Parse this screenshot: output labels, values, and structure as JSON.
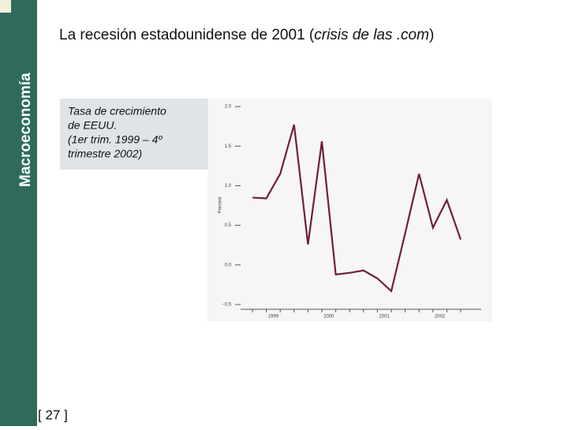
{
  "sidebar": "Macroeconomía",
  "title": {
    "start": "La recesión estadounidense de 2001 (",
    "italic": "crisis de las .com",
    "end": ")"
  },
  "caption": [
    "Tasa de crecimiento",
    "de EEUU.",
    "(1er trim. 1999 – 4º",
    "trimestre 2002)"
  ],
  "page_number": "[ 27 ]",
  "chart_data": {
    "type": "line",
    "y_label": "Percent",
    "categories": [
      "1999",
      null,
      null,
      null,
      "2000",
      null,
      null,
      null,
      "2001",
      null,
      null,
      null,
      "2002",
      null,
      null,
      null
    ],
    "series": [
      {
        "color": "#6e1f3c",
        "values": [
          0.85,
          0.84,
          1.15,
          1.77,
          0.26,
          1.56,
          -0.12,
          -0.1,
          -0.07,
          -0.17,
          -0.33,
          0.4,
          1.15,
          0.47,
          0.82,
          0.32
        ]
      }
    ],
    "ylim": [
      -0.5,
      2.0
    ],
    "yticks": [
      {
        "value": -0.5,
        "label": "−0.5"
      },
      {
        "value": 0,
        "label": "0.0"
      },
      0.5,
      {
        "value": 1,
        "label": "1.0"
      },
      1.5,
      {
        "value": 2,
        "label": "2.0"
      }
    ]
  }
}
